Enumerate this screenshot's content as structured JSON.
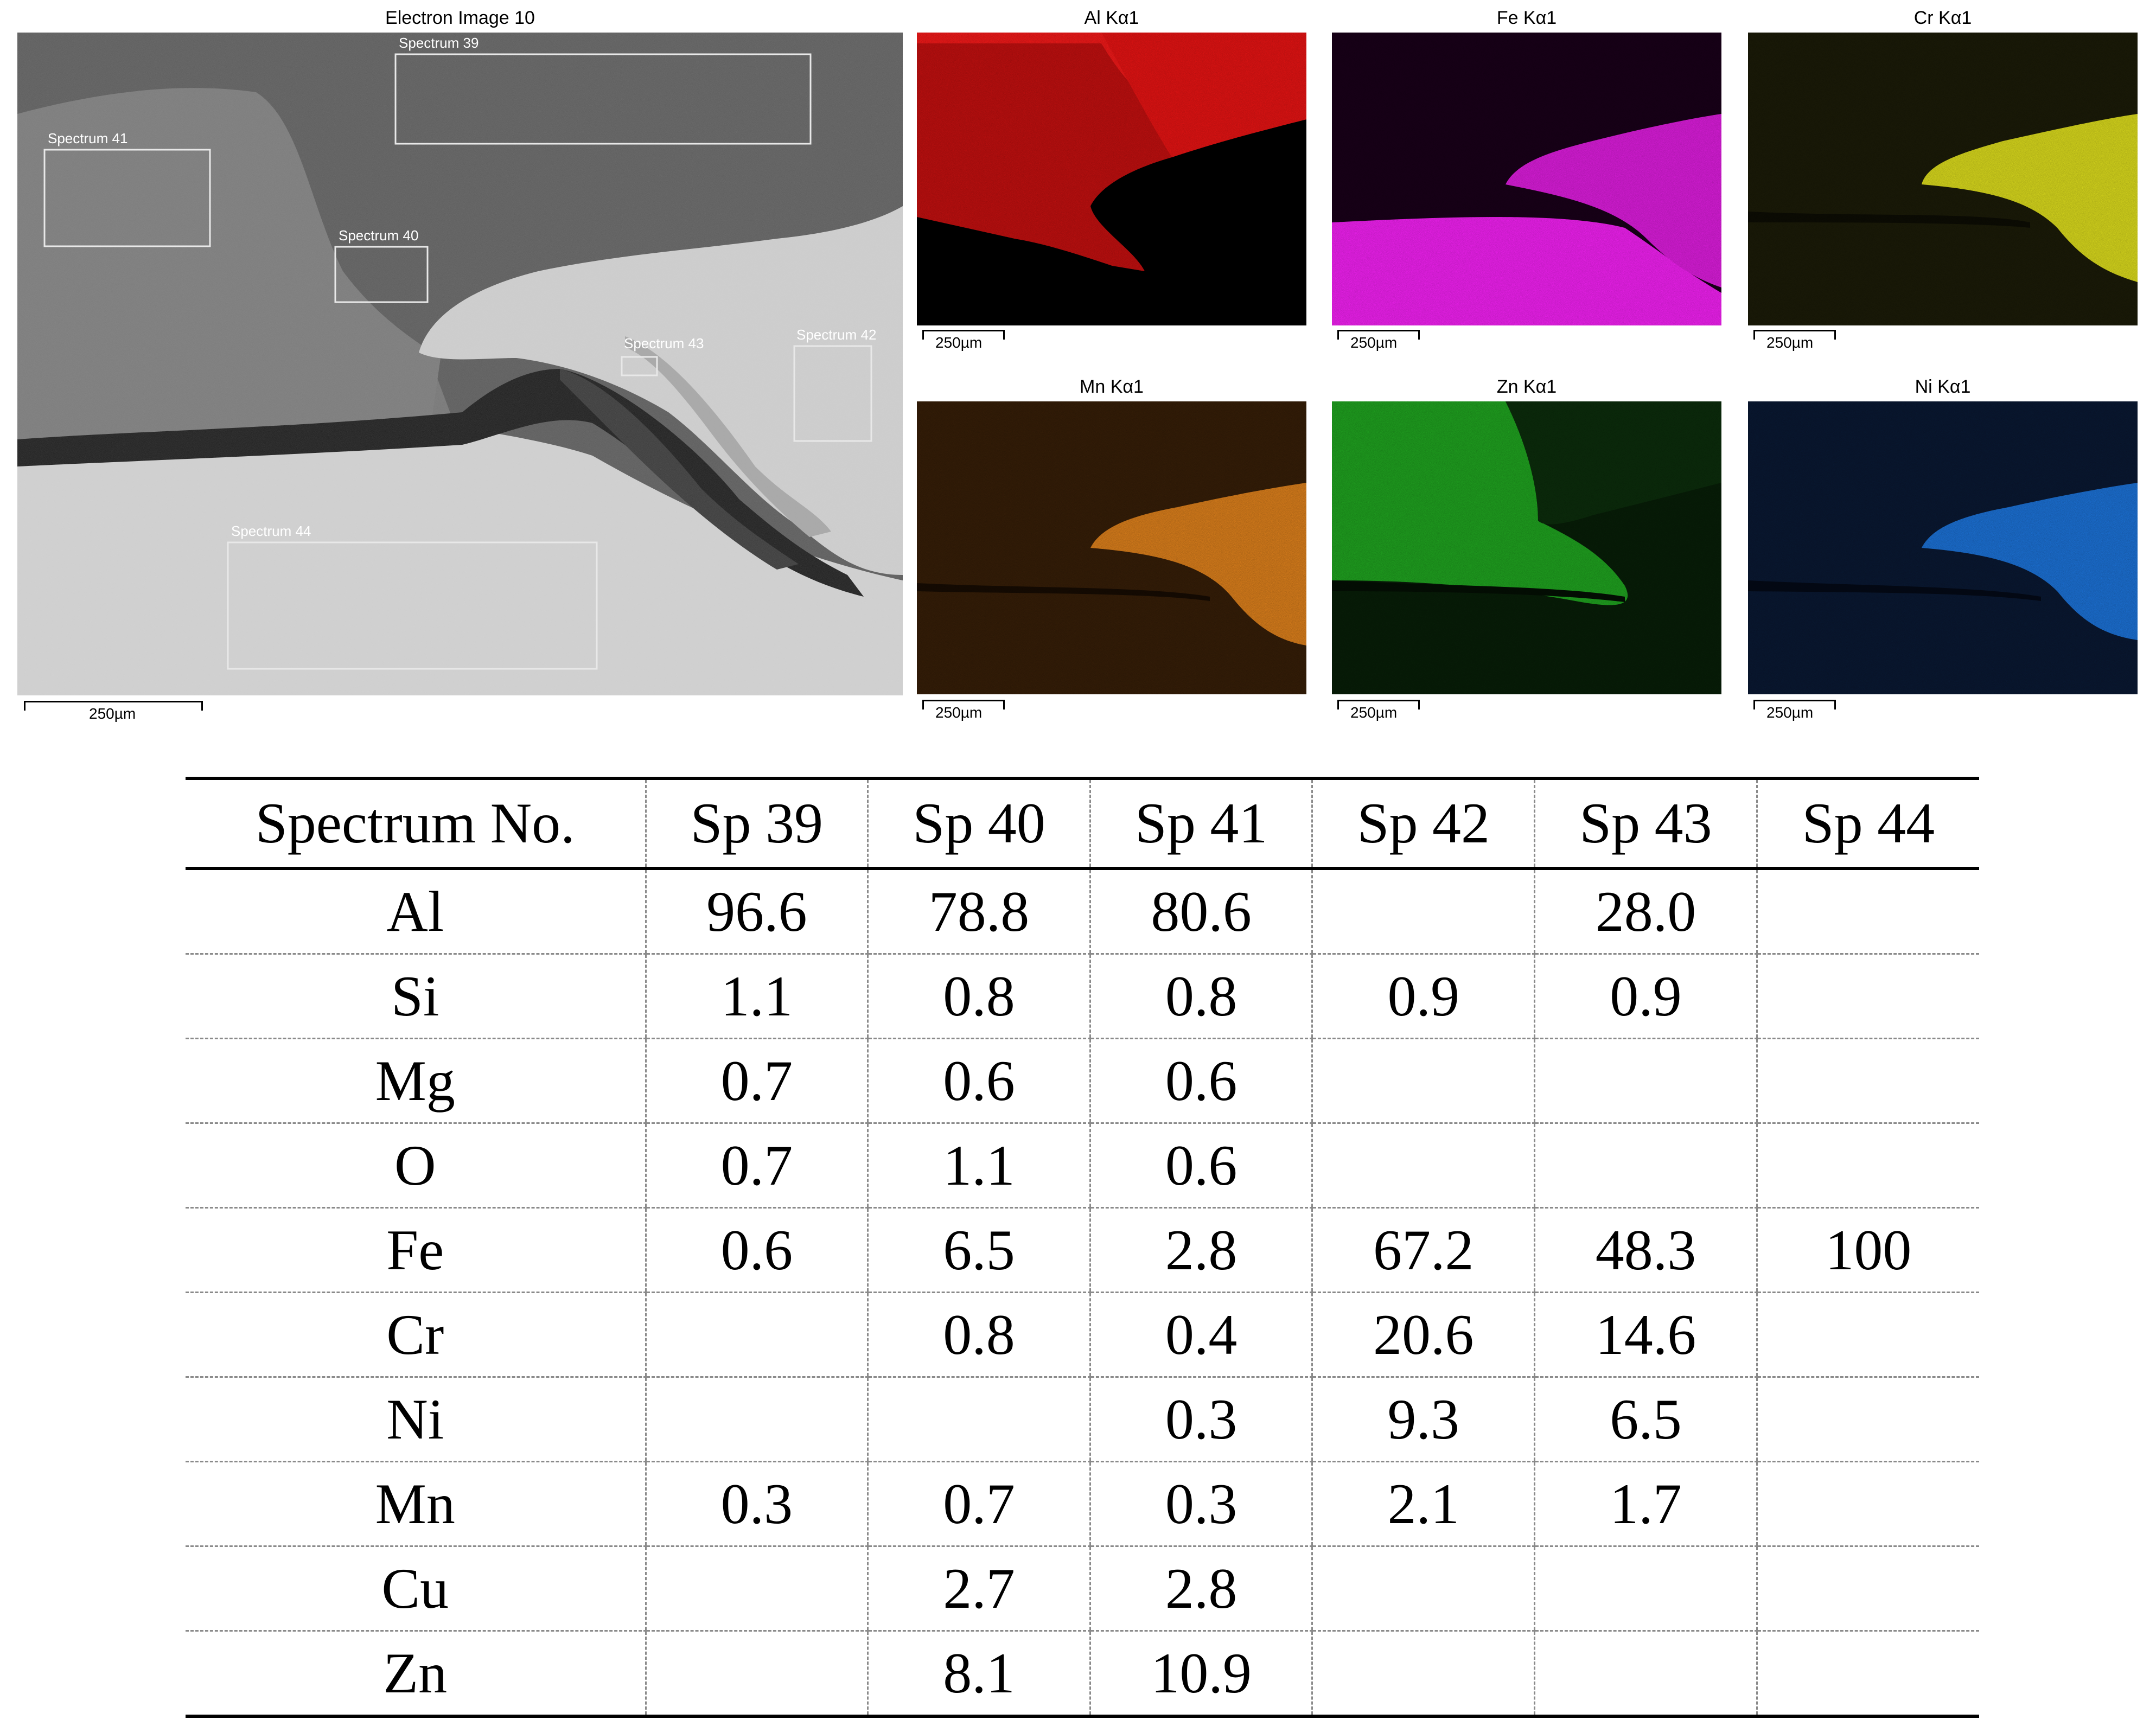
{
  "figure": {
    "electron_image": {
      "title": "Electron Image 10",
      "scale": "250µm",
      "spectra": [
        {
          "label": "Spectrum 39"
        },
        {
          "label": "Spectrum 41"
        },
        {
          "label": "Spectrum 40"
        },
        {
          "label": "Spectrum 43"
        },
        {
          "label": "Spectrum 42"
        },
        {
          "label": "Spectrum 44"
        }
      ]
    },
    "maps": [
      {
        "title": "Al Kα1",
        "scale": "250µm",
        "color": "#ff1a1a"
      },
      {
        "title": "Fe Kα1",
        "scale": "250µm",
        "color": "#ff22ff"
      },
      {
        "title": "Cr Kα1",
        "scale": "250µm",
        "color": "#e6e61e"
      },
      {
        "title": "Mn Kα1",
        "scale": "250µm",
        "color": "#ee8a1e"
      },
      {
        "title": "Zn Kα1",
        "scale": "250µm",
        "color": "#22b022"
      },
      {
        "title": "Ni Kα1",
        "scale": "250µm",
        "color": "#1e7be8"
      }
    ]
  },
  "table": {
    "headers": [
      "Spectrum No.",
      "Sp 39",
      "Sp 40",
      "Sp 41",
      "Sp 42",
      "Sp 43",
      "Sp 44"
    ],
    "rows": [
      [
        "Al",
        "96.6",
        "78.8",
        "80.6",
        "",
        "28.0",
        ""
      ],
      [
        "Si",
        "1.1",
        "0.8",
        "0.8",
        "0.9",
        "0.9",
        ""
      ],
      [
        "Mg",
        "0.7",
        "0.6",
        "0.6",
        "",
        "",
        ""
      ],
      [
        "O",
        "0.7",
        "1.1",
        "0.6",
        "",
        "",
        ""
      ],
      [
        "Fe",
        "0.6",
        "6.5",
        "2.8",
        "67.2",
        "48.3",
        "100"
      ],
      [
        "Cr",
        "",
        "0.8",
        "0.4",
        "20.6",
        "14.6",
        ""
      ],
      [
        "Ni",
        "",
        "",
        "0.3",
        "9.3",
        "6.5",
        ""
      ],
      [
        "Mn",
        "0.3",
        "0.7",
        "0.3",
        "2.1",
        "1.7",
        ""
      ],
      [
        "Cu",
        "",
        "2.7",
        "2.8",
        "",
        "",
        ""
      ],
      [
        "Zn",
        "",
        "8.1",
        "10.9",
        "",
        "",
        ""
      ]
    ]
  }
}
